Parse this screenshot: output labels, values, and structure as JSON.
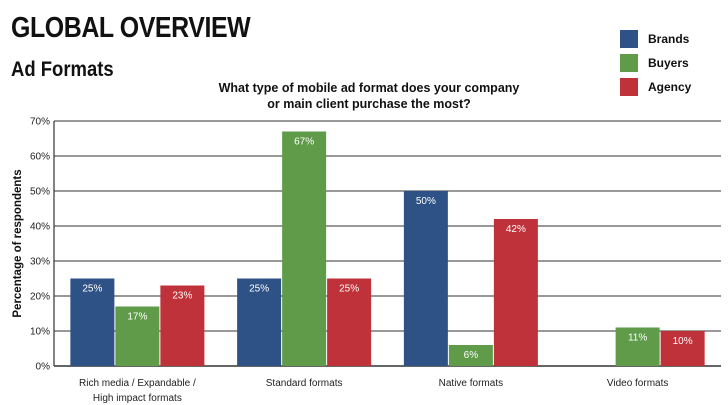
{
  "header": {
    "title": "GLOBAL OVERVIEW",
    "subtitle": "Ad Formats"
  },
  "chart_data": {
    "type": "bar",
    "title": "What type of mobile ad format does your company or main client purchase the most?",
    "title_lines": [
      "What type of mobile ad format does your company",
      "or main client purchase the most?"
    ],
    "xlabel": "",
    "ylabel": "Percentage of respondents",
    "ylim": [
      0,
      70
    ],
    "yticks": [
      0,
      10,
      20,
      30,
      40,
      50,
      60,
      70
    ],
    "ytick_labels": [
      "0%",
      "10%",
      "20%",
      "30%",
      "40%",
      "50%",
      "60%",
      "70%"
    ],
    "grid": true,
    "legend_position": "top-right",
    "categories": [
      [
        "Rich media / Expandable /",
        "High impact formats"
      ],
      [
        "Standard formats"
      ],
      [
        "Native formats"
      ],
      [
        "Video formats"
      ]
    ],
    "series": [
      {
        "name": "Brands",
        "color": "#2e5286",
        "values": [
          25,
          25,
          50,
          null
        ],
        "labels": [
          "25%",
          "25%",
          "50%",
          ""
        ]
      },
      {
        "name": "Buyers",
        "color": "#5f9b49",
        "values": [
          17,
          67,
          6,
          11
        ],
        "labels": [
          "17%",
          "67%",
          "6%",
          "11%"
        ]
      },
      {
        "name": "Agency",
        "color": "#c0323a",
        "values": [
          23,
          25,
          42,
          10
        ],
        "labels": [
          "23%",
          "25%",
          "42%",
          "10%"
        ]
      }
    ]
  }
}
